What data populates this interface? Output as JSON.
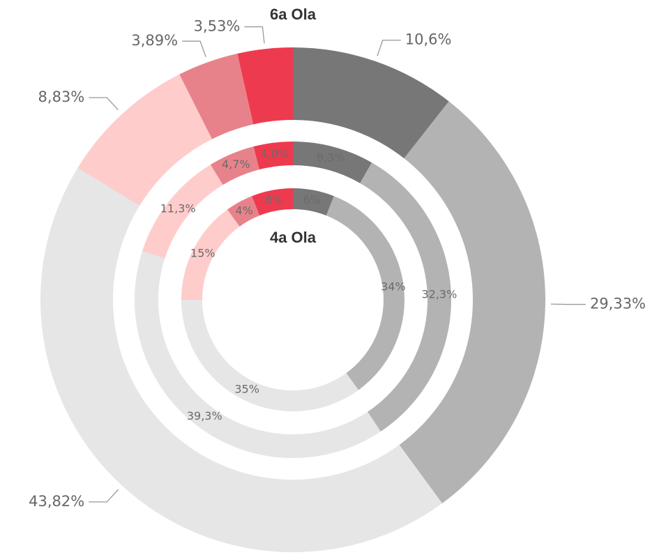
{
  "chart_data": {
    "type": "donut",
    "colors": [
      "#777777",
      "#b3b3b3",
      "#e6e6e6",
      "#ffcccc",
      "#e8828a",
      "#ee3a4e"
    ],
    "series": [
      {
        "name": "6a Ola",
        "values": [
          10.6,
          29.33,
          43.82,
          8.83,
          3.89,
          3.53
        ],
        "value_labels": [
          "10,6%",
          "29,33%",
          "43,82%",
          "8,83%",
          "3,89%",
          "3,53%"
        ]
      },
      {
        "values": [
          8.3,
          32.3,
          39.3,
          11.3,
          4.7,
          4.0
        ],
        "value_labels": [
          "8,3%",
          "32,3%",
          "39,3%",
          "11,3%",
          "4,7%",
          "4,0%"
        ]
      },
      {
        "name": "4a Ola",
        "values": [
          6,
          34,
          35,
          15,
          4,
          6
        ],
        "value_labels": [
          "6%",
          "34%",
          "35%",
          "15%",
          "4%",
          "6%"
        ]
      }
    ]
  }
}
